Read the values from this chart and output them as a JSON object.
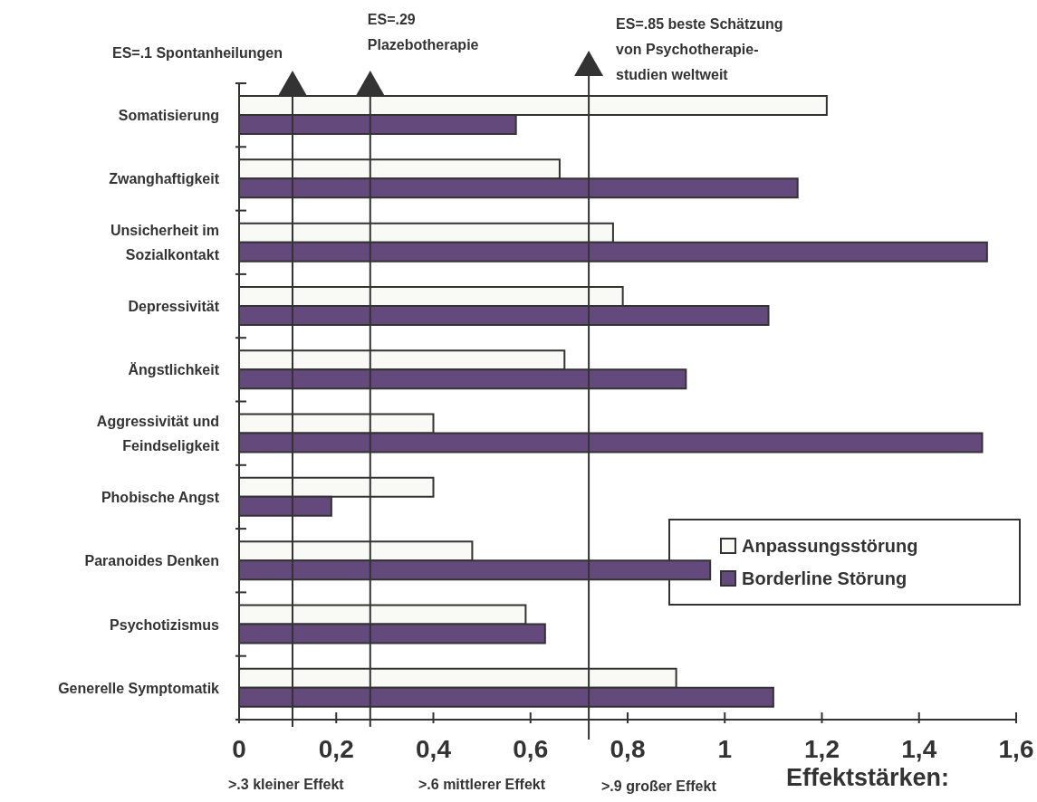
{
  "chart_data": {
    "type": "bar",
    "orientation": "horizontal",
    "xlabel": "Effektstärken:",
    "categories": [
      "Somatisierung",
      "Zwanghaftigkeit",
      "Unsicherheit im Sozialkontakt",
      "Depressivität",
      "Ängstlichkeit",
      "Aggressivität und Feindseligkeit",
      "Phobische Angst",
      "Paranoides Denken",
      "Psychotizismus",
      "Generelle Symptomatik"
    ],
    "series": [
      {
        "name": "Anpassungsstörung",
        "color": "#f9f9f6",
        "values": [
          1.21,
          0.66,
          0.77,
          0.79,
          0.67,
          0.4,
          0.4,
          0.48,
          0.59,
          0.9
        ]
      },
      {
        "name": "Borderline Störung",
        "color": "#64497c",
        "values": [
          0.57,
          1.15,
          1.54,
          1.09,
          0.92,
          1.53,
          0.19,
          0.97,
          0.63,
          1.1
        ]
      }
    ],
    "xlim": [
      0,
      1.6
    ],
    "xticks": [
      0,
      {
        "value": 0.2,
        "label": "0,2"
      },
      {
        "value": 0.4,
        "label": "0,4"
      },
      {
        "value": 0.6,
        "label": "0,6"
      },
      {
        "value": 0.8,
        "label": "0,8"
      },
      1,
      {
        "value": 1.2,
        "label": "1,2"
      },
      {
        "value": 1.4,
        "label": "1,4"
      },
      {
        "value": 1.6,
        "label": "1,6"
      }
    ],
    "ref_lines": [
      {
        "axis": "x",
        "value": 0.11,
        "label": "ES=.1 Spontanheilungen",
        "color": "#333333"
      },
      {
        "axis": "x",
        "value": 0.27,
        "label": "ES=.29\nPlazebotherapie",
        "color": "#333333"
      },
      {
        "axis": "x",
        "value": 0.72,
        "label": "ES=.85 beste Schätzung\nvon Psychotherapie-\nstudien weltweit",
        "color": "#333333"
      }
    ],
    "annotations": [
      ">.3 kleiner Effekt",
      ">.6 mittlerer Effekt",
      ">.9 großer Effekt"
    ],
    "legend": "right",
    "grid": false
  }
}
